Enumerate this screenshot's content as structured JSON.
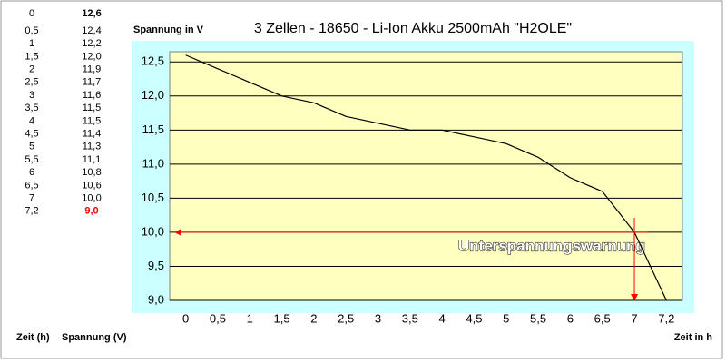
{
  "chart_data": {
    "type": "line",
    "title": "3 Zellen - 18650 - Li-Ion Akku 2500mAh \"H2OLE\"",
    "y_axis_label": "Spannung in V",
    "x_axis_label": "Zeit in h",
    "table_headers": [
      "Zeit (h)",
      "Spannung (V)"
    ],
    "annotation": "Unterspannungswarnung",
    "threshold": 10,
    "categories": [
      "0",
      "0,5",
      "1",
      "1,5",
      "2",
      "2,5",
      "3",
      "3,5",
      "4",
      "4,5",
      "5",
      "5,5",
      "6",
      "6,5",
      "7",
      "7,2"
    ],
    "values": [
      12.6,
      12.4,
      12.2,
      12.0,
      11.9,
      11.7,
      11.6,
      11.5,
      11.5,
      11.4,
      11.3,
      11.1,
      10.8,
      10.6,
      10.0,
      9.0
    ],
    "value_labels": [
      "12,6",
      "12,4",
      "12,2",
      "12,0",
      "11,9",
      "11,7",
      "11,6",
      "11,5",
      "11,5",
      "11,4",
      "11,3",
      "11,1",
      "10,8",
      "10,6",
      "10,0",
      "9,0"
    ],
    "color": "#000000",
    "threshold_color": "#ff0000",
    "ylim": [
      9,
      12.65
    ],
    "yticks": [
      {
        "value": 9,
        "label": "9,0"
      },
      {
        "value": 9.5,
        "label": "9,5"
      },
      {
        "value": 10,
        "label": "10,0"
      },
      {
        "value": 10.5,
        "label": "10,5"
      },
      {
        "value": 11,
        "label": "11,0"
      },
      {
        "value": 11.5,
        "label": "11,5"
      },
      {
        "value": 12,
        "label": "12,0"
      },
      {
        "value": 12.5,
        "label": "12,5"
      }
    ],
    "grid": true
  }
}
